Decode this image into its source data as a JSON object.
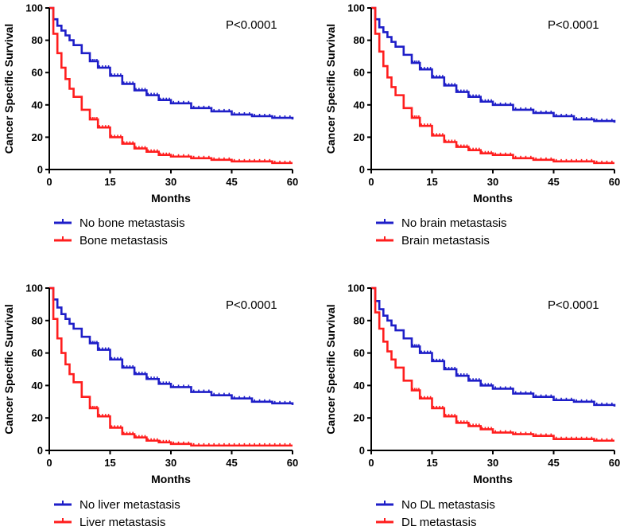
{
  "figure": {
    "description_panels": 4,
    "colors": {
      "series_1": "#1e1ec8",
      "series_2": "#ff1e1e"
    }
  },
  "chart_data": [
    {
      "type": "line",
      "step": true,
      "title": "",
      "xlabel": "Months",
      "ylabel": "Cancer Specific Survival",
      "xlim": [
        0,
        60
      ],
      "ylim": [
        0,
        100
      ],
      "xticks": [
        0,
        15,
        30,
        45,
        60
      ],
      "yticks": [
        0,
        20,
        40,
        60,
        80,
        100
      ],
      "annotation": "P<0.0001",
      "x": [
        0,
        1,
        2,
        3,
        4,
        5,
        6,
        8,
        10,
        12,
        15,
        18,
        21,
        24,
        27,
        30,
        35,
        40,
        45,
        50,
        55,
        60
      ],
      "series": [
        {
          "name": "No bone metastasis",
          "color": "#1e1ec8",
          "values": [
            100,
            93,
            89,
            86,
            83,
            80,
            77,
            72,
            67,
            63,
            58,
            53,
            49,
            46,
            43,
            41,
            38,
            36,
            34,
            33,
            32,
            31
          ]
        },
        {
          "name": "Bone metastasis",
          "color": "#ff1e1e",
          "values": [
            100,
            84,
            72,
            63,
            56,
            50,
            45,
            37,
            31,
            26,
            20,
            16,
            13,
            11,
            9,
            8,
            7,
            6,
            5,
            5,
            4,
            4
          ]
        }
      ]
    },
    {
      "type": "line",
      "step": true,
      "title": "",
      "xlabel": "Months",
      "ylabel": "Cancer Specific Survival",
      "xlim": [
        0,
        60
      ],
      "ylim": [
        0,
        100
      ],
      "xticks": [
        0,
        15,
        30,
        45,
        60
      ],
      "yticks": [
        0,
        20,
        40,
        60,
        80,
        100
      ],
      "annotation": "P<0.0001",
      "x": [
        0,
        1,
        2,
        3,
        4,
        5,
        6,
        8,
        10,
        12,
        15,
        18,
        21,
        24,
        27,
        30,
        35,
        40,
        45,
        50,
        55,
        60
      ],
      "series": [
        {
          "name": "No brain metastasis",
          "color": "#1e1ec8",
          "values": [
            100,
            93,
            88,
            85,
            82,
            79,
            76,
            71,
            66,
            62,
            57,
            52,
            48,
            45,
            42,
            40,
            37,
            35,
            33,
            31,
            30,
            29
          ]
        },
        {
          "name": "Brain metastasis",
          "color": "#ff1e1e",
          "values": [
            100,
            84,
            73,
            64,
            57,
            51,
            46,
            38,
            32,
            27,
            21,
            17,
            14,
            12,
            10,
            9,
            7,
            6,
            5,
            5,
            4,
            4
          ]
        }
      ]
    },
    {
      "type": "line",
      "step": true,
      "title": "",
      "xlabel": "Months",
      "ylabel": "Cancer Specific Survival",
      "xlim": [
        0,
        60
      ],
      "ylim": [
        0,
        100
      ],
      "xticks": [
        0,
        15,
        30,
        45,
        60
      ],
      "yticks": [
        0,
        20,
        40,
        60,
        80,
        100
      ],
      "annotation": "P<0.0001",
      "x": [
        0,
        1,
        2,
        3,
        4,
        5,
        6,
        8,
        10,
        12,
        15,
        18,
        21,
        24,
        27,
        30,
        35,
        40,
        45,
        50,
        55,
        60
      ],
      "series": [
        {
          "name": "No liver metastasis",
          "color": "#1e1ec8",
          "values": [
            100,
            93,
            88,
            84,
            81,
            78,
            75,
            70,
            66,
            62,
            56,
            51,
            47,
            44,
            41,
            39,
            36,
            34,
            32,
            30,
            29,
            28
          ]
        },
        {
          "name": "Liver metastasis",
          "color": "#ff1e1e",
          "values": [
            100,
            81,
            69,
            60,
            53,
            47,
            42,
            33,
            26,
            21,
            14,
            10,
            8,
            6,
            5,
            4,
            3,
            3,
            3,
            3,
            3,
            3
          ]
        }
      ]
    },
    {
      "type": "line",
      "step": true,
      "title": "",
      "xlabel": "Months",
      "ylabel": "Cancer Specific Survival",
      "xlim": [
        0,
        60
      ],
      "ylim": [
        0,
        100
      ],
      "xticks": [
        0,
        15,
        30,
        45,
        60
      ],
      "yticks": [
        0,
        20,
        40,
        60,
        80,
        100
      ],
      "annotation": "P<0.0001",
      "x": [
        0,
        1,
        2,
        3,
        4,
        5,
        6,
        8,
        10,
        12,
        15,
        18,
        21,
        24,
        27,
        30,
        35,
        40,
        45,
        50,
        55,
        60
      ],
      "series": [
        {
          "name": "No DL metastasis",
          "color": "#1e1ec8",
          "values": [
            100,
            92,
            87,
            83,
            80,
            77,
            74,
            69,
            64,
            60,
            55,
            50,
            46,
            43,
            40,
            38,
            35,
            33,
            31,
            30,
            28,
            27
          ]
        },
        {
          "name": "DL metastasis",
          "color": "#ff1e1e",
          "values": [
            100,
            85,
            75,
            67,
            61,
            56,
            51,
            43,
            37,
            32,
            26,
            21,
            17,
            15,
            13,
            11,
            10,
            9,
            7,
            7,
            6,
            6
          ]
        }
      ]
    }
  ]
}
